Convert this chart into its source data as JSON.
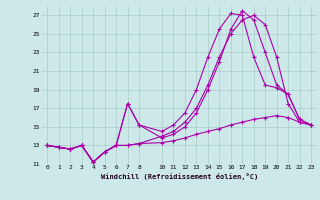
{
  "xlabel": "Windchill (Refroidissement éolien,°C)",
  "background_color": "#cce8e8",
  "grid_color": "#aacccc",
  "line_color": "#aa00aa",
  "ylim": [
    11,
    28
  ],
  "xlim": [
    -0.5,
    23.5
  ],
  "yticks": [
    11,
    13,
    15,
    17,
    19,
    21,
    23,
    25,
    27
  ],
  "xticks": [
    0,
    1,
    2,
    3,
    4,
    5,
    6,
    7,
    8,
    10,
    11,
    12,
    13,
    14,
    15,
    16,
    17,
    18,
    19,
    20,
    21,
    22,
    23
  ],
  "line1_x": [
    0,
    1,
    2,
    3,
    4,
    5,
    6,
    7,
    8,
    10,
    11,
    12,
    13,
    14,
    15,
    16,
    17,
    18,
    19,
    20,
    21,
    22,
    23
  ],
  "line1_y": [
    13,
    12.8,
    12.6,
    13.0,
    11.2,
    12.3,
    13.0,
    13.0,
    13.2,
    13.3,
    13.5,
    13.8,
    14.2,
    14.5,
    14.8,
    15.2,
    15.5,
    15.8,
    16.0,
    16.2,
    16.0,
    15.5,
    15.2
  ],
  "line2_x": [
    0,
    1,
    2,
    3,
    4,
    5,
    6,
    7,
    8,
    10,
    11,
    12,
    13,
    14,
    15,
    16,
    17,
    18,
    19,
    20,
    21,
    22,
    23
  ],
  "line2_y": [
    13,
    12.8,
    12.6,
    13.0,
    11.2,
    12.3,
    13.0,
    13.0,
    13.2,
    14.0,
    14.5,
    15.5,
    17.0,
    19.5,
    22.5,
    25.0,
    26.5,
    27.0,
    26.0,
    22.5,
    17.5,
    15.5,
    15.2
  ],
  "line3_x": [
    0,
    1,
    2,
    3,
    4,
    5,
    6,
    7,
    8,
    10,
    11,
    12,
    13,
    14,
    15,
    16,
    17,
    18,
    19,
    20,
    21,
    22,
    23
  ],
  "line3_y": [
    13,
    12.8,
    12.6,
    13.0,
    11.2,
    12.3,
    13.0,
    17.5,
    15.2,
    13.8,
    14.2,
    15.0,
    16.5,
    19.0,
    22.0,
    25.5,
    27.5,
    26.5,
    23.0,
    19.5,
    18.5,
    15.8,
    15.2
  ],
  "line4_x": [
    0,
    1,
    2,
    3,
    4,
    5,
    6,
    7,
    8,
    10,
    11,
    12,
    13,
    14,
    15,
    16,
    17,
    18,
    19,
    20,
    21,
    22,
    23
  ],
  "line4_y": [
    13,
    12.8,
    12.6,
    13.0,
    11.2,
    12.3,
    13.0,
    17.5,
    15.2,
    14.5,
    15.2,
    16.5,
    19.0,
    22.5,
    25.5,
    27.2,
    27.0,
    22.5,
    19.5,
    19.2,
    18.5,
    15.8,
    15.2
  ]
}
